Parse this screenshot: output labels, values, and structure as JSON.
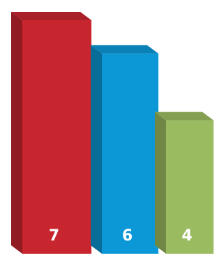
{
  "chart_data": {
    "type": "bar",
    "style": "3d",
    "categories": [
      "",
      "",
      ""
    ],
    "values": [
      7,
      6,
      4
    ],
    "data_labels": [
      "7",
      "6",
      "4"
    ],
    "ylim": [
      0,
      7
    ],
    "colors": [
      "#c8262f",
      "#0c98d6",
      "#9bbb61"
    ],
    "grid": false,
    "legend": "none"
  }
}
